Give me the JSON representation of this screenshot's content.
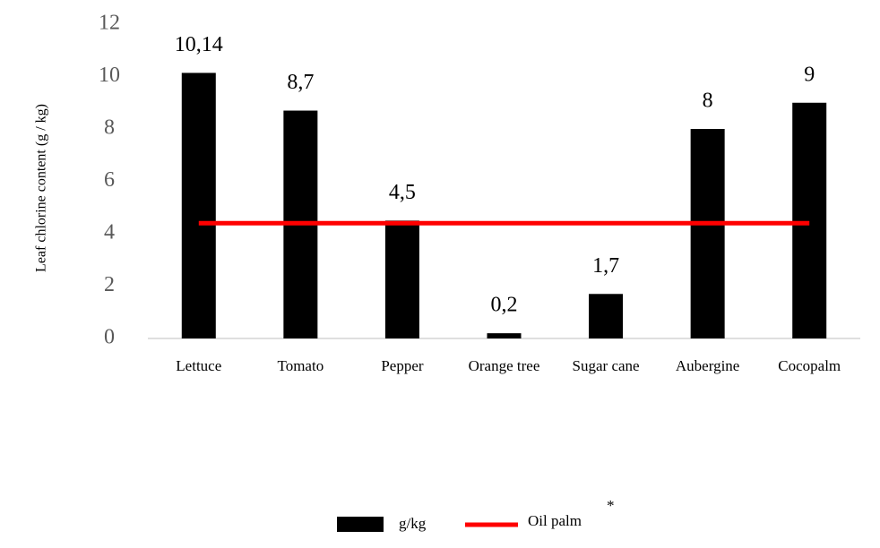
{
  "chart_data": {
    "type": "bar",
    "ylabel": "Leaf chlorine content (g / kg)",
    "categories": [
      "Lettuce",
      "Tomato",
      "Pepper",
      "Orange tree",
      "Sugar cane",
      "Aubergine",
      "Cocopalm"
    ],
    "series": [
      {
        "name": "g/kg",
        "type": "bar",
        "color": "#000000",
        "values": [
          10.14,
          8.7,
          4.5,
          0.2,
          1.7,
          8,
          9
        ],
        "value_labels": [
          "10,14",
          "8,7",
          "4,5",
          "0,2",
          "1,7",
          "8",
          "9"
        ]
      },
      {
        "name": "Oil palm",
        "type": "line",
        "color": "#ff0000",
        "values": [
          4.4,
          4.4,
          4.4,
          4.4,
          4.4,
          4.4,
          4.4
        ]
      }
    ],
    "legend_note": "*",
    "ylim": [
      0,
      12
    ],
    "yticks": [
      0,
      2,
      4,
      6,
      8,
      10,
      12
    ],
    "grid": false
  }
}
